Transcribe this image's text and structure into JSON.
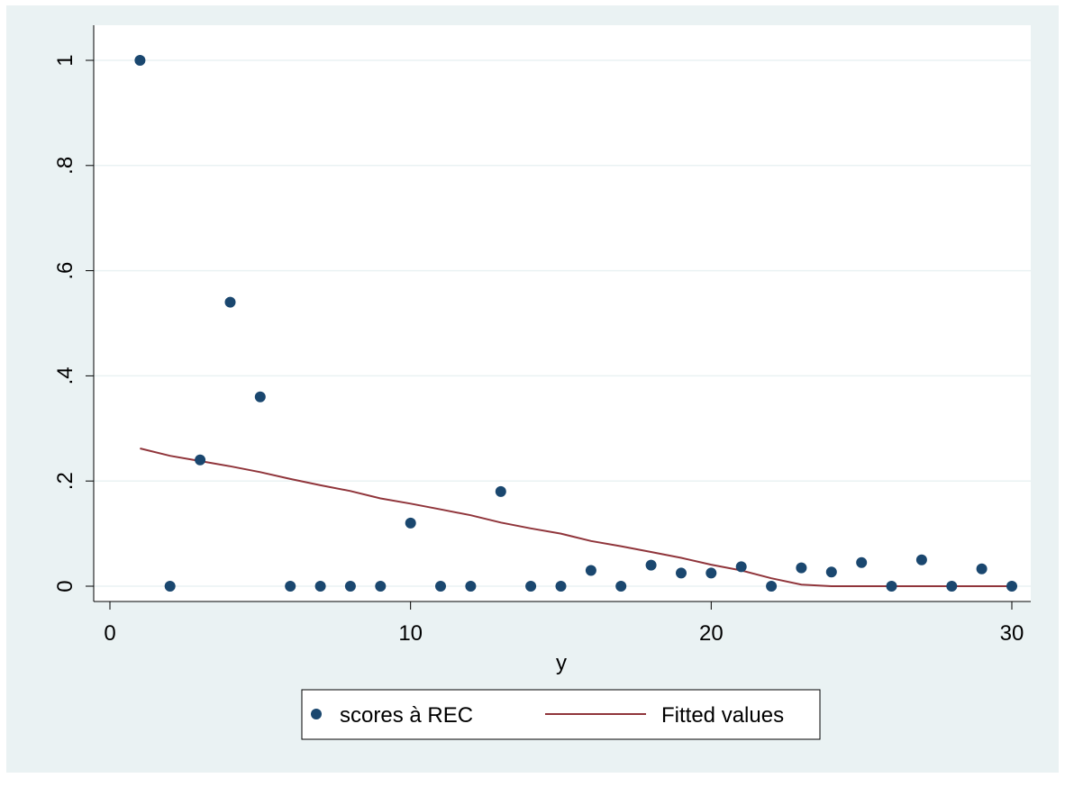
{
  "chart_data": {
    "type": "scatter",
    "xlabel": "y",
    "ylabel": "",
    "xlim": [
      0,
      30
    ],
    "ylim": [
      0,
      1
    ],
    "x_ticks": [
      0,
      10,
      20,
      30
    ],
    "x_tick_labels": [
      "0",
      "10",
      "20",
      "30"
    ],
    "y_ticks": [
      0,
      0.2,
      0.4,
      0.6,
      0.8,
      1
    ],
    "y_tick_labels": [
      "0",
      ".2",
      ".4",
      ".6",
      ".8",
      "1"
    ],
    "grid": true,
    "legend_position": "bottom",
    "series": [
      {
        "name": "scores à REC",
        "type": "scatter",
        "color": "#1a476f",
        "points": [
          [
            1,
            1.0
          ],
          [
            2,
            0.0
          ],
          [
            3,
            0.24
          ],
          [
            4,
            0.54
          ],
          [
            5,
            0.36
          ],
          [
            6,
            0.0
          ],
          [
            7,
            0.0
          ],
          [
            8,
            0.0
          ],
          [
            9,
            0.0
          ],
          [
            10,
            0.12
          ],
          [
            11,
            0.0
          ],
          [
            12,
            0.0
          ],
          [
            13,
            0.18
          ],
          [
            14,
            0.0
          ],
          [
            15,
            0.0
          ],
          [
            16,
            0.03
          ],
          [
            17,
            0.0
          ],
          [
            18,
            0.04
          ],
          [
            19,
            0.025
          ],
          [
            20,
            0.025
          ],
          [
            21,
            0.037
          ],
          [
            22,
            0.0
          ],
          [
            23,
            0.035
          ],
          [
            24,
            0.027
          ],
          [
            25,
            0.045
          ],
          [
            26,
            0.0
          ],
          [
            27,
            0.05
          ],
          [
            28,
            0.0
          ],
          [
            29,
            0.033
          ],
          [
            30,
            0.0
          ]
        ]
      },
      {
        "name": "Fitted values",
        "type": "line",
        "color": "#90353b",
        "points": [
          [
            1,
            0.262
          ],
          [
            2,
            0.248
          ],
          [
            3,
            0.238
          ],
          [
            4,
            0.228
          ],
          [
            5,
            0.217
          ],
          [
            6,
            0.204
          ],
          [
            7,
            0.192
          ],
          [
            8,
            0.181
          ],
          [
            9,
            0.167
          ],
          [
            10,
            0.157
          ],
          [
            11,
            0.146
          ],
          [
            12,
            0.135
          ],
          [
            13,
            0.121
          ],
          [
            14,
            0.11
          ],
          [
            15,
            0.1
          ],
          [
            16,
            0.086
          ],
          [
            17,
            0.076
          ],
          [
            18,
            0.065
          ],
          [
            19,
            0.054
          ],
          [
            20,
            0.041
          ],
          [
            21,
            0.03
          ],
          [
            22,
            0.015
          ],
          [
            23,
            0.003
          ],
          [
            24,
            0.0
          ],
          [
            25,
            0.0
          ],
          [
            26,
            0.0
          ],
          [
            27,
            0.0
          ],
          [
            28,
            0.0
          ],
          [
            29,
            0.0
          ],
          [
            30,
            0.0
          ]
        ]
      }
    ]
  },
  "colors": {
    "outer_background": "#eaf2f3",
    "plot_background": "#ffffff",
    "grid": "#eaf2f3",
    "axis": "#000000"
  }
}
